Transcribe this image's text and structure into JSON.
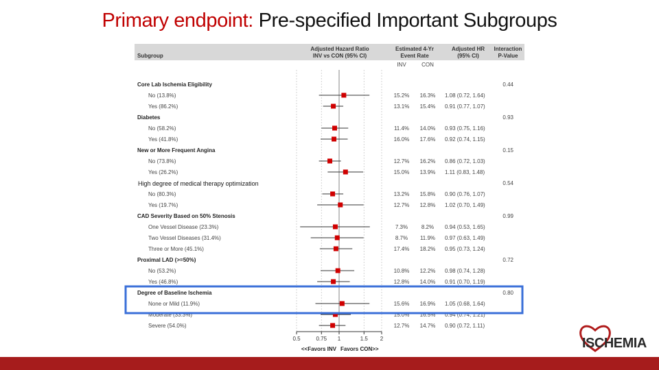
{
  "slide": {
    "title_prefix": "Primary endpoint:",
    "title_rest": "Pre-specified Important Subgroups",
    "logo_text": "ISCHEMIA",
    "accent_color": "#c00000",
    "footer_color": "#a61c1c",
    "highlight_color": "#3a6fd8"
  },
  "chart_data": {
    "type": "forest",
    "headers": {
      "subgroup": "Subgroup",
      "hr_line1": "Adjusted Hazard Ratio",
      "hr_line2": "INV vs CON (95% CI)",
      "rate_line1": "Estimated 4-Yr",
      "rate_line2": "Event Rate",
      "inv": "INV",
      "con": "CON",
      "adj_line1": "Adjusted HR",
      "adj_line2": "(95% CI)",
      "p_line1": "Interaction",
      "p_line2": "P-Value"
    },
    "x_scale": "log",
    "xlim": [
      0.5,
      2
    ],
    "ticks": [
      {
        "v": 0.5,
        "label": "0.5"
      },
      {
        "v": 0.75,
        "label": "0.75"
      },
      {
        "v": 1,
        "label": "1"
      },
      {
        "v": 1.5,
        "label": "1.5"
      },
      {
        "v": 2,
        "label": "2"
      }
    ],
    "axis_label_left": "<<Favors INV",
    "axis_label_right": "Favors CON>>",
    "overlay_label": "High degree of medical therapy optimization",
    "groups": [
      {
        "name": "Core Lab Ischemia Eligibility",
        "p": "0.44",
        "rows": [
          {
            "label": "No (13.8%)",
            "inv": "15.2%",
            "con": "16.3%",
            "ci": "1.08 (0.72, 1.64)",
            "hr": 1.08,
            "lo": 0.72,
            "hi": 1.64
          },
          {
            "label": "Yes (86.2%)",
            "inv": "13.1%",
            "con": "15.4%",
            "ci": "0.91 (0.77, 1.07)",
            "hr": 0.91,
            "lo": 0.77,
            "hi": 1.07
          }
        ]
      },
      {
        "name": "Diabetes",
        "p": "0.93",
        "rows": [
          {
            "label": "No (58.2%)",
            "inv": "11.4%",
            "con": "14.0%",
            "ci": "0.93 (0.75, 1.16)",
            "hr": 0.93,
            "lo": 0.75,
            "hi": 1.16
          },
          {
            "label": "Yes (41.8%)",
            "inv": "16.0%",
            "con": "17.6%",
            "ci": "0.92 (0.74, 1.15)",
            "hr": 0.92,
            "lo": 0.74,
            "hi": 1.15
          }
        ]
      },
      {
        "name": "New or More Frequent Angina",
        "p": "0.15",
        "rows": [
          {
            "label": "No (73.8%)",
            "inv": "12.7%",
            "con": "16.2%",
            "ci": "0.86 (0.72, 1.03)",
            "hr": 0.86,
            "lo": 0.72,
            "hi": 1.03
          },
          {
            "label": "Yes (26.2%)",
            "inv": "15.0%",
            "con": "13.9%",
            "ci": "1.11 (0.83, 1.48)",
            "hr": 1.11,
            "lo": 0.83,
            "hi": 1.48
          }
        ]
      },
      {
        "name": "",
        "p": "0.54",
        "rows": [
          {
            "label": "No (80.3%)",
            "inv": "13.2%",
            "con": "15.8%",
            "ci": "0.90 (0.76, 1.07)",
            "hr": 0.9,
            "lo": 0.76,
            "hi": 1.07
          },
          {
            "label": "Yes (19.7%)",
            "inv": "12.7%",
            "con": "12.8%",
            "ci": "1.02 (0.70, 1.49)",
            "hr": 1.02,
            "lo": 0.7,
            "hi": 1.49
          }
        ]
      },
      {
        "name": "CAD Severity Based on 50% Stenosis",
        "p": "0.99",
        "rows": [
          {
            "label": "One Vessel Disease (23.3%)",
            "inv": "7.3%",
            "con": "8.2%",
            "ci": "0.94 (0.53, 1.65)",
            "hr": 0.94,
            "lo": 0.53,
            "hi": 1.65
          },
          {
            "label": "Two Vessel Diseases (31.4%)",
            "inv": "8.7%",
            "con": "11.9%",
            "ci": "0.97 (0.63, 1.49)",
            "hr": 0.97,
            "lo": 0.63,
            "hi": 1.49
          },
          {
            "label": "Three or More (45.1%)",
            "inv": "17.4%",
            "con": "18.2%",
            "ci": "0.95 (0.73, 1.24)",
            "hr": 0.95,
            "lo": 0.73,
            "hi": 1.24
          }
        ]
      },
      {
        "name": "Proximal LAD (>=50%)",
        "p": "0.72",
        "rows": [
          {
            "label": "No (53.2%)",
            "inv": "10.8%",
            "con": "12.2%",
            "ci": "0.98 (0.74, 1.28)",
            "hr": 0.98,
            "lo": 0.74,
            "hi": 1.28
          },
          {
            "label": "Yes (46.8%)",
            "inv": "12.8%",
            "con": "14.0%",
            "ci": "0.91 (0.70, 1.19)",
            "hr": 0.91,
            "lo": 0.7,
            "hi": 1.19
          }
        ]
      },
      {
        "name": "Degree of Baseline Ischemia",
        "p": "0.80",
        "highlight": true,
        "rows": [
          {
            "label": "None or Mild (11.9%)",
            "inv": "15.6%",
            "con": "16.9%",
            "ci": "1.05 (0.68, 1.64)",
            "hr": 1.05,
            "lo": 0.68,
            "hi": 1.64
          },
          {
            "label": "Moderate (33.3%)",
            "inv": "15.0%",
            "con": "16.5%",
            "ci": "0.94 (0.74, 1.21)",
            "hr": 0.94,
            "lo": 0.74,
            "hi": 1.21
          },
          {
            "label": "Severe (54.0%)",
            "inv": "12.7%",
            "con": "14.7%",
            "ci": "0.90 (0.72, 1.11)",
            "hr": 0.9,
            "lo": 0.72,
            "hi": 1.11
          }
        ]
      }
    ]
  }
}
